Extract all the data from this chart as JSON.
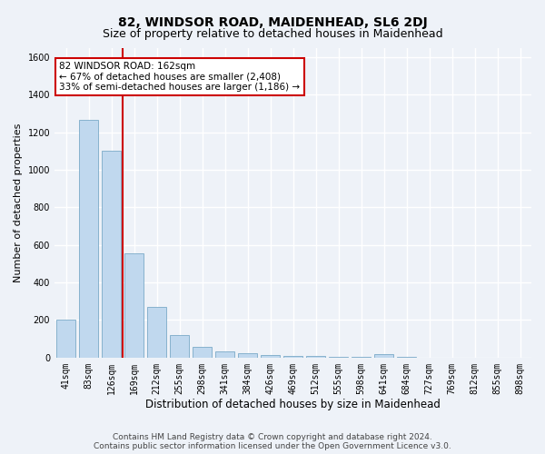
{
  "title": "82, WINDSOR ROAD, MAIDENHEAD, SL6 2DJ",
  "subtitle": "Size of property relative to detached houses in Maidenhead",
  "xlabel": "Distribution of detached houses by size in Maidenhead",
  "ylabel": "Number of detached properties",
  "footer_line1": "Contains HM Land Registry data © Crown copyright and database right 2024.",
  "footer_line2": "Contains public sector information licensed under the Open Government Licence v3.0.",
  "categories": [
    "41sqm",
    "83sqm",
    "126sqm",
    "169sqm",
    "212sqm",
    "255sqm",
    "298sqm",
    "341sqm",
    "384sqm",
    "426sqm",
    "469sqm",
    "512sqm",
    "555sqm",
    "598sqm",
    "641sqm",
    "684sqm",
    "727sqm",
    "769sqm",
    "812sqm",
    "855sqm",
    "898sqm"
  ],
  "values": [
    200,
    1265,
    1100,
    555,
    270,
    120,
    58,
    33,
    22,
    15,
    10,
    8,
    5,
    2,
    18,
    2,
    0,
    0,
    0,
    0,
    0
  ],
  "bar_color": "#c0d8ee",
  "bar_edge_color": "#7aaac8",
  "vline_pos": 2.5,
  "vline_color": "#cc0000",
  "annotation_text": "82 WINDSOR ROAD: 162sqm\n← 67% of detached houses are smaller (2,408)\n33% of semi-detached houses are larger (1,186) →",
  "annotation_box_facecolor": "white",
  "annotation_box_edgecolor": "#cc0000",
  "ylim": [
    0,
    1650
  ],
  "yticks": [
    0,
    200,
    400,
    600,
    800,
    1000,
    1200,
    1400,
    1600
  ],
  "bg_color": "#eef2f8",
  "grid_color": "white",
  "title_fontsize": 10,
  "subtitle_fontsize": 9,
  "ylabel_fontsize": 8,
  "xlabel_fontsize": 8.5,
  "tick_fontsize": 7,
  "annot_fontsize": 7.5,
  "footer_fontsize": 6.5
}
